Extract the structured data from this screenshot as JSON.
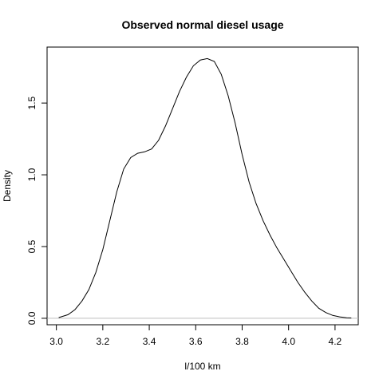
{
  "chart_data": {
    "type": "line",
    "title": "Observed normal diesel usage",
    "xlabel": "l/100 km",
    "ylabel": "Density",
    "xlim": [
      2.96,
      4.3
    ],
    "ylim": [
      -0.045,
      1.89
    ],
    "x_ticks": [
      3.0,
      3.2,
      3.4,
      3.6,
      3.8,
      4.0,
      4.2
    ],
    "x_tick_labels": [
      "3.0",
      "3.2",
      "3.4",
      "3.6",
      "3.8",
      "4.0",
      "4.2"
    ],
    "y_ticks": [
      0.0,
      0.5,
      1.0,
      1.5
    ],
    "y_tick_labels": [
      "0.0",
      "0.5",
      "1.0",
      "1.5"
    ],
    "baseline": 0,
    "grid": false,
    "legend": "none",
    "colors": {
      "line": "#000000",
      "baseline": "#bebebe",
      "axis": "#000000"
    },
    "series": [
      {
        "x": [
          3.01,
          3.05,
          3.08,
          3.11,
          3.14,
          3.17,
          3.2,
          3.23,
          3.26,
          3.29,
          3.32,
          3.35,
          3.38,
          3.41,
          3.44,
          3.47,
          3.5,
          3.53,
          3.56,
          3.59,
          3.62,
          3.65,
          3.68,
          3.71,
          3.74,
          3.77,
          3.8,
          3.83,
          3.86,
          3.89,
          3.92,
          3.95,
          3.98,
          4.01,
          4.04,
          4.07,
          4.1,
          4.13,
          4.16,
          4.19,
          4.22,
          4.25,
          4.27
        ],
        "y": [
          0.005,
          0.025,
          0.06,
          0.12,
          0.2,
          0.32,
          0.48,
          0.68,
          0.88,
          1.04,
          1.12,
          1.15,
          1.16,
          1.18,
          1.24,
          1.34,
          1.46,
          1.58,
          1.68,
          1.76,
          1.8,
          1.81,
          1.79,
          1.7,
          1.55,
          1.36,
          1.14,
          0.95,
          0.8,
          0.68,
          0.58,
          0.49,
          0.41,
          0.33,
          0.25,
          0.18,
          0.12,
          0.07,
          0.04,
          0.02,
          0.01,
          0.004,
          0.002
        ]
      }
    ]
  }
}
